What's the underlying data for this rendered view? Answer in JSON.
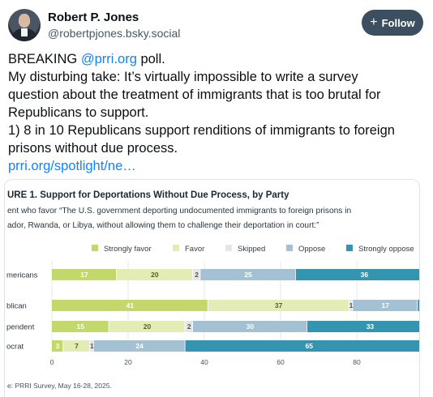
{
  "author": {
    "name": "Robert P. Jones",
    "handle": "@robertpjones.bsky.social"
  },
  "follow_label": "Follow",
  "post": {
    "line1_prefix": "BREAKING ",
    "line1_mention": "@prri.org",
    "line1_suffix": " poll.",
    "line2": "My disturbing take: It’s virtually impossible to write a survey",
    "line3": "question about the treatment of immigrants that is too brutal for",
    "line4": "Republicans to support.",
    "line5": "1) 8 in 10 Republicans support renditions of immigrants to foreign",
    "line6": "prisons without due process.",
    "link": "prri.org/spotlight/ne…"
  },
  "chart_data": {
    "type": "bar",
    "stacked": true,
    "orientation": "horizontal",
    "title": "URE 1.  Support for Deportations Without Due Process, by Party",
    "subtitle_line1": "ent who favor “The U.S. government deporting undocumented immigrants to foreign prisons in",
    "subtitle_line2": "ador, Rwanda, or Libya, without allowing them to challenge their deportation in court:”",
    "categories": [
      "mericans",
      "blican",
      "pendent",
      "ocrat"
    ],
    "series": [
      {
        "name": "Strongly favor",
        "color": "#c2d86b",
        "values": [
          17,
          41,
          15,
          3
        ]
      },
      {
        "name": "Favor",
        "color": "#e4ecb6",
        "values": [
          20,
          37,
          20,
          7
        ]
      },
      {
        "name": "Skipped",
        "color": "#e6e6e6",
        "values": [
          2,
          1,
          2,
          1
        ]
      },
      {
        "name": "Oppose",
        "color": "#a3c1d3",
        "values": [
          25,
          17,
          30,
          24
        ]
      },
      {
        "name": "Strongly oppose",
        "color": "#3595b1",
        "values": [
          36,
          4,
          33,
          65
        ]
      }
    ],
    "xlim": [
      0,
      100
    ],
    "x_ticks": [
      "0",
      "20",
      "40",
      "60",
      "80"
    ],
    "source": "e: PRRI Survey, May 16-28, 2025."
  }
}
